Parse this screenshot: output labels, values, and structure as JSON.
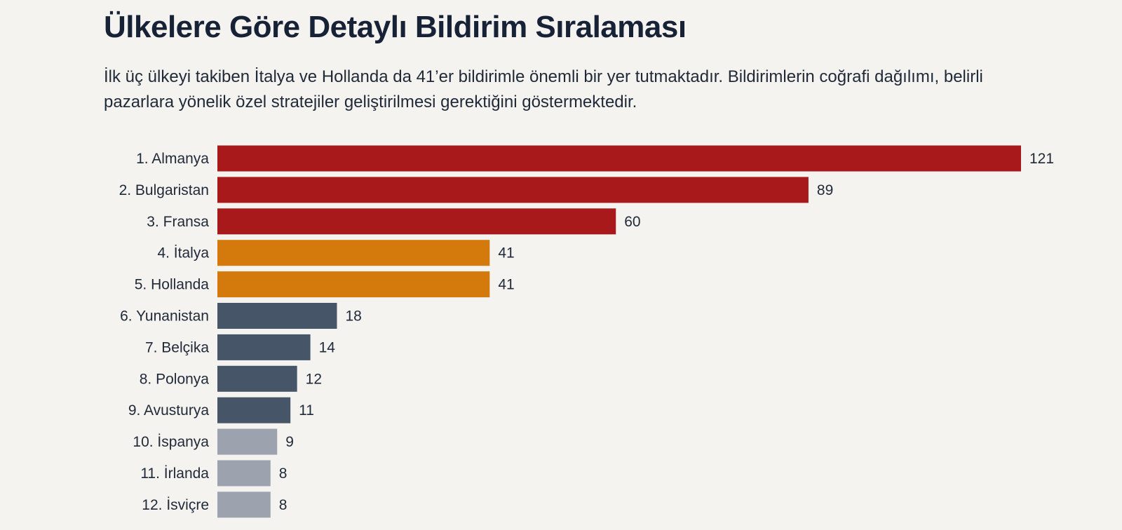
{
  "chart_data": {
    "type": "bar",
    "orientation": "horizontal",
    "title": "Ülkelere Göre Detaylı Bildirim Sıralaması",
    "subtitle": "İlk üç ülkeyi takiben İtalya ve Hollanda da 41’er bildirimle önemli bir yer tutmaktadır. Bildirimlerin coğrafi dağılımı, belirli pazarlara yönelik özel stratejiler geliştirilmesi gerektiğini göstermektedir.",
    "categories": [
      "1. Almanya",
      "2. Bulgaristan",
      "3. Fransa",
      "4. İtalya",
      "5. Hollanda",
      "6. Yunanistan",
      "7. Belçika",
      "8. Polonya",
      "9. Avusturya",
      "10. İspanya",
      "11. İrlanda",
      "12. İsviçre"
    ],
    "values": [
      121,
      89,
      60,
      41,
      41,
      18,
      14,
      12,
      11,
      9,
      8,
      8
    ],
    "bar_colors": [
      "#a8191b",
      "#a8191b",
      "#a8191b",
      "#d47a0c",
      "#d47a0c",
      "#475569",
      "#475569",
      "#475569",
      "#475569",
      "#9ca3af",
      "#9ca3af",
      "#9ca3af"
    ],
    "xlim": [
      0,
      121
    ],
    "grid": false,
    "xlabel": "",
    "ylabel": ""
  }
}
